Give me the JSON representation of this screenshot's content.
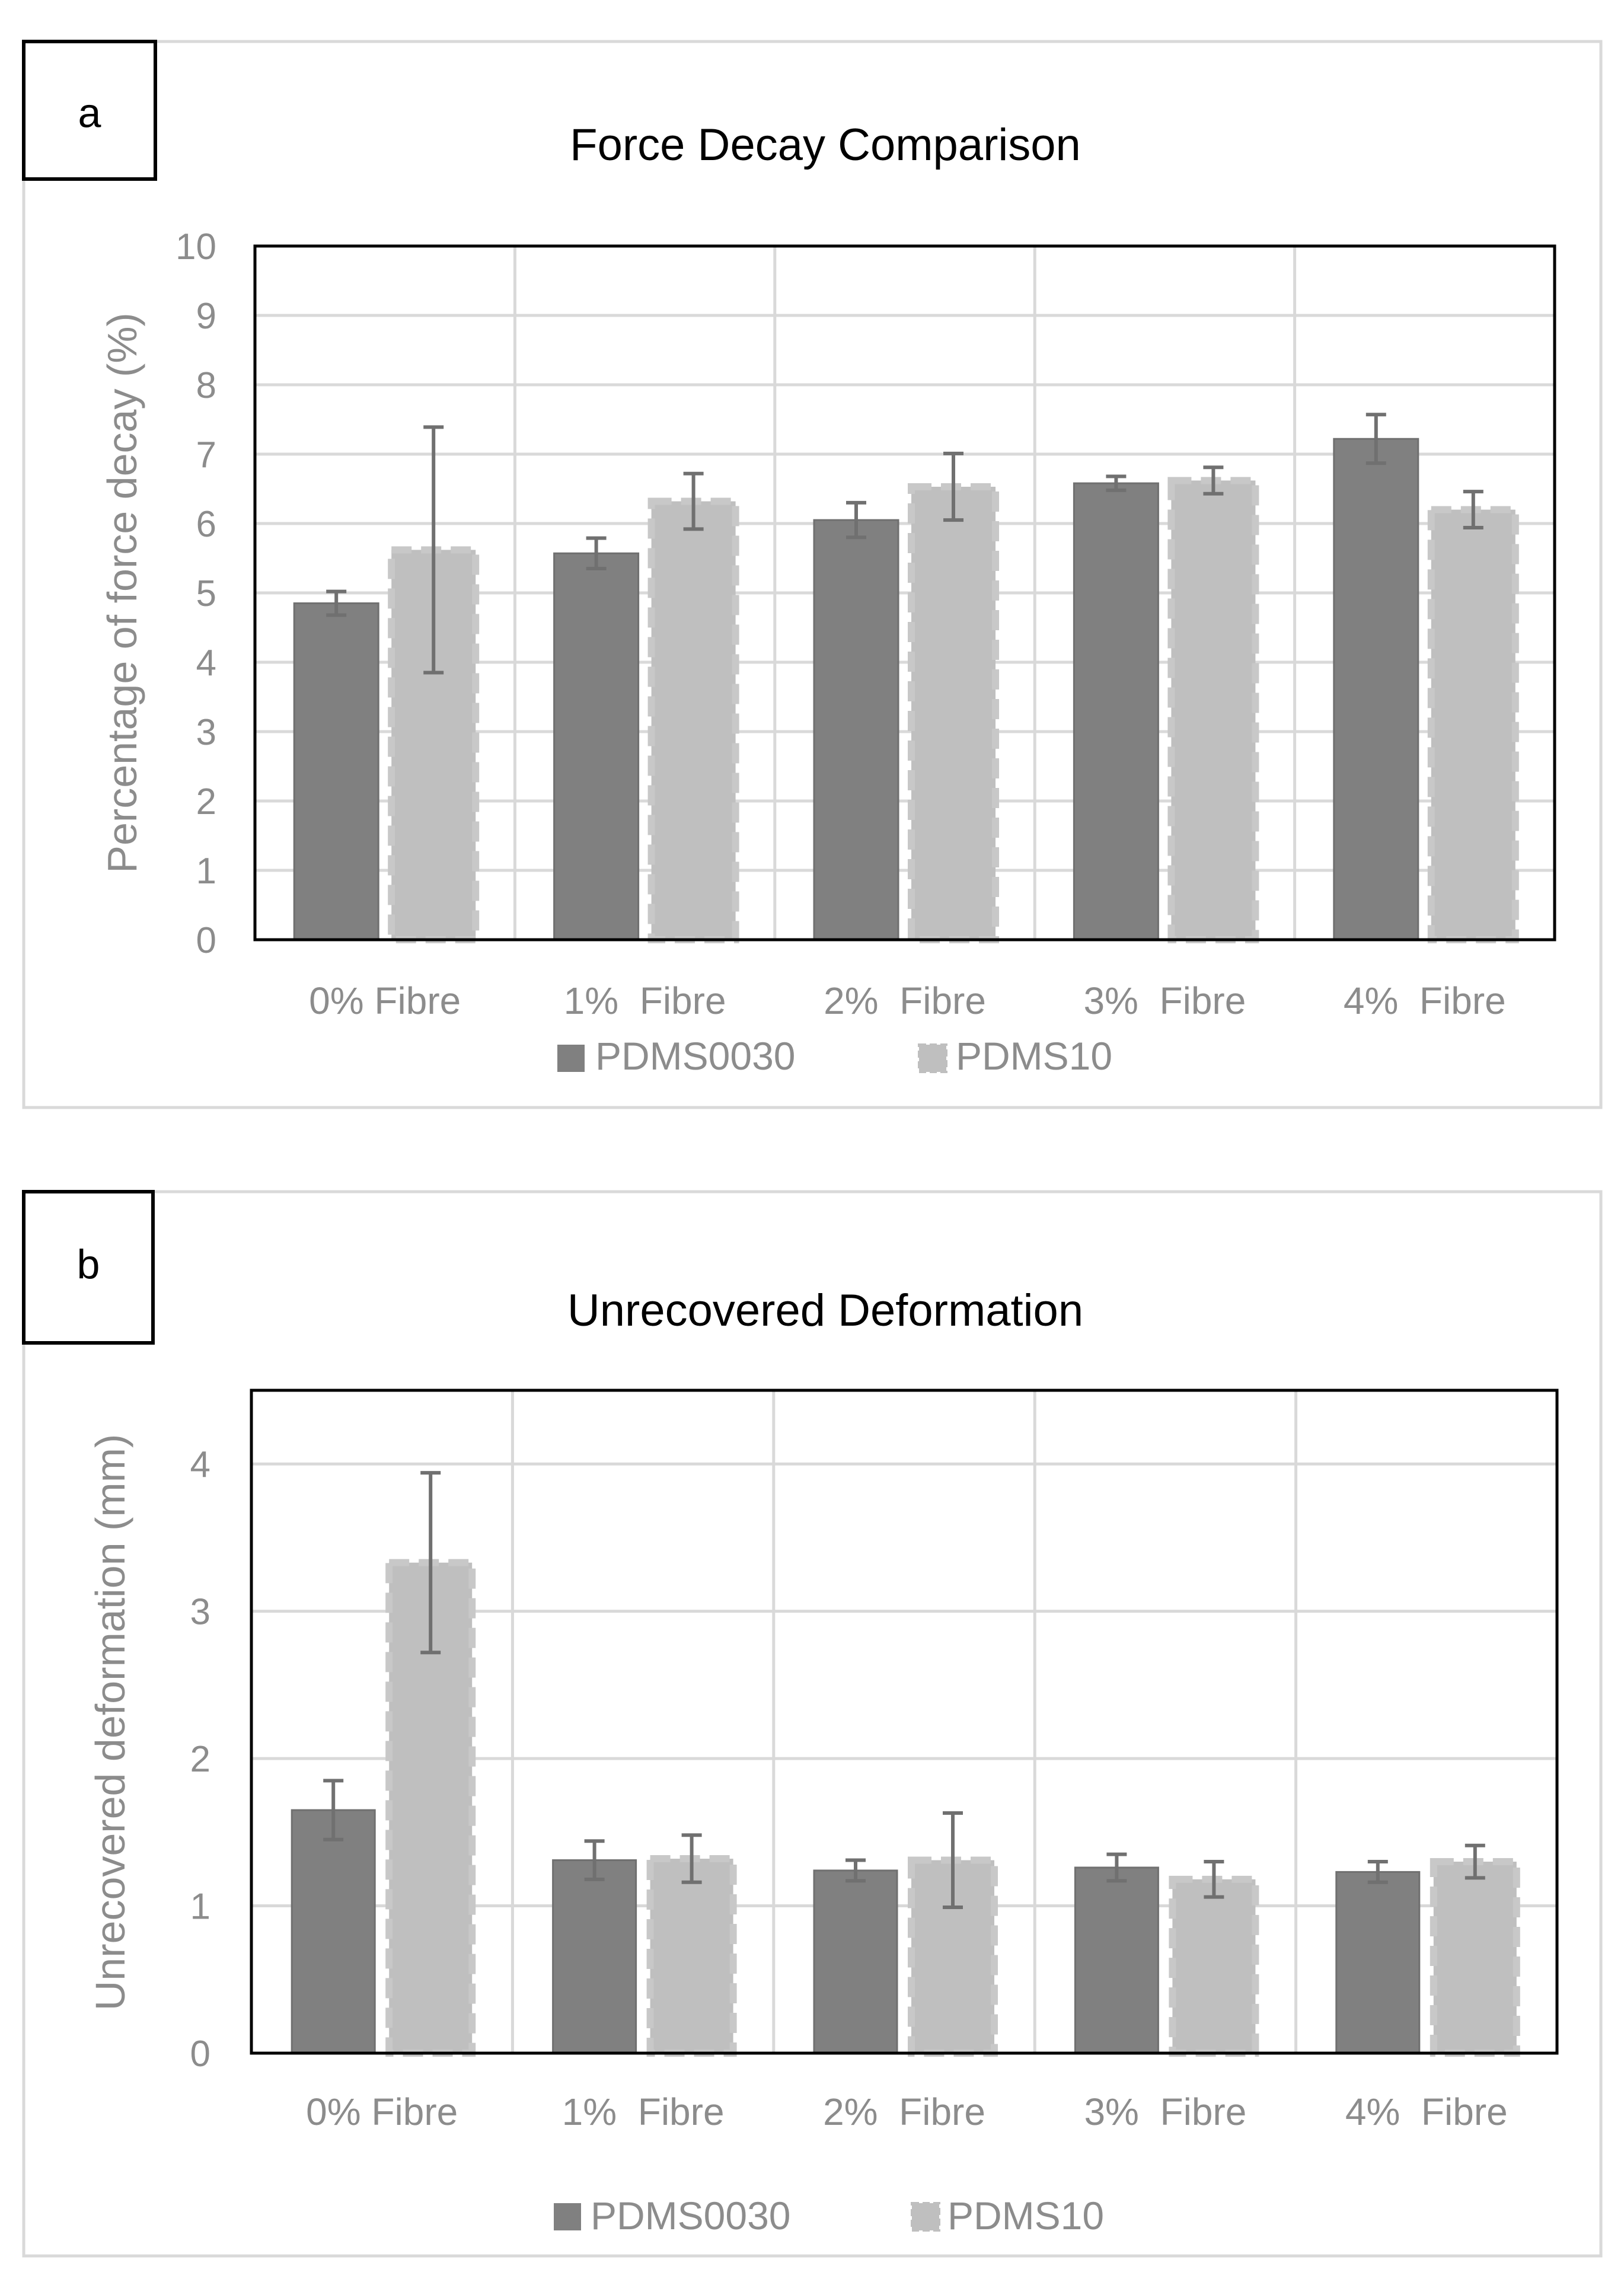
{
  "colors": {
    "series_dark": "#808080",
    "series_light": "#bfbfbf",
    "error_bar": "#707070",
    "grid": "#d9d9d9",
    "axis_text": "#8c8c8c",
    "frame": "#d9d9d9",
    "title_text": "#000000"
  },
  "chart_data": [
    {
      "panel_label": "a",
      "type": "bar",
      "title": "Force Decay Comparison",
      "xlabel": "",
      "ylabel": "Percentage of force decay (%)",
      "categories": [
        "0% Fibre",
        "1%  Fibre",
        "2%  Fibre",
        "3%  Fibre",
        "4%  Fibre"
      ],
      "ylim": [
        0,
        10
      ],
      "yticks": [
        0,
        1,
        2,
        3,
        4,
        5,
        6,
        7,
        8,
        9,
        10
      ],
      "grid": true,
      "legend_position": "bottom",
      "series": [
        {
          "name": "PDMS0030",
          "values": [
            4.85,
            5.57,
            6.05,
            6.58,
            7.22
          ],
          "errors": [
            0.17,
            0.22,
            0.25,
            0.1,
            0.35
          ],
          "style": "solid"
        },
        {
          "name": "PDMS10",
          "values": [
            5.62,
            6.32,
            6.53,
            6.62,
            6.2
          ],
          "errors": [
            1.77,
            0.4,
            0.48,
            0.19,
            0.26
          ],
          "style": "dashed"
        }
      ]
    },
    {
      "panel_label": "b",
      "type": "bar",
      "title": "Unrecovered Deformation",
      "xlabel": "",
      "ylabel": "Unrecovered deformation (mm)",
      "categories": [
        "0% Fibre",
        "1%  Fibre",
        "2%  Fibre",
        "3%  Fibre",
        "4%  Fibre"
      ],
      "ylim": [
        0,
        4.5
      ],
      "yticks": [
        0,
        1,
        2,
        3,
        4
      ],
      "grid": true,
      "legend_position": "bottom",
      "series": [
        {
          "name": "PDMS0030",
          "values": [
            1.65,
            1.31,
            1.24,
            1.26,
            1.23
          ],
          "errors": [
            0.2,
            0.13,
            0.07,
            0.09,
            0.07
          ],
          "style": "solid"
        },
        {
          "name": "PDMS10",
          "values": [
            3.33,
            1.32,
            1.31,
            1.18,
            1.3
          ],
          "errors": [
            0.61,
            0.16,
            0.32,
            0.12,
            0.11
          ],
          "style": "dashed"
        }
      ]
    }
  ]
}
